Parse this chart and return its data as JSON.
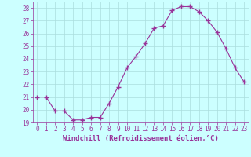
{
  "x": [
    0,
    1,
    2,
    3,
    4,
    5,
    6,
    7,
    8,
    9,
    10,
    11,
    12,
    13,
    14,
    15,
    16,
    17,
    18,
    19,
    20,
    21,
    22,
    23
  ],
  "y": [
    21.0,
    21.0,
    19.9,
    19.9,
    19.2,
    19.2,
    19.4,
    19.4,
    20.5,
    21.8,
    23.3,
    24.2,
    25.2,
    26.4,
    26.6,
    27.8,
    28.1,
    28.1,
    27.7,
    27.0,
    26.1,
    24.8,
    23.3,
    22.2
  ],
  "line_color": "#993399",
  "marker": "+",
  "marker_size": 4,
  "bg_color": "#ccffff",
  "grid_color": "#aadddd",
  "xlabel": "Windchill (Refroidissement éolien,°C)",
  "xlabel_fontsize": 6.5,
  "tick_fontsize": 5.5,
  "ylim": [
    19,
    28.5
  ],
  "xlim": [
    -0.5,
    23.5
  ],
  "yticks": [
    19,
    20,
    21,
    22,
    23,
    24,
    25,
    26,
    27,
    28
  ],
  "xticks": [
    0,
    1,
    2,
    3,
    4,
    5,
    6,
    7,
    8,
    9,
    10,
    11,
    12,
    13,
    14,
    15,
    16,
    17,
    18,
    19,
    20,
    21,
    22,
    23
  ]
}
